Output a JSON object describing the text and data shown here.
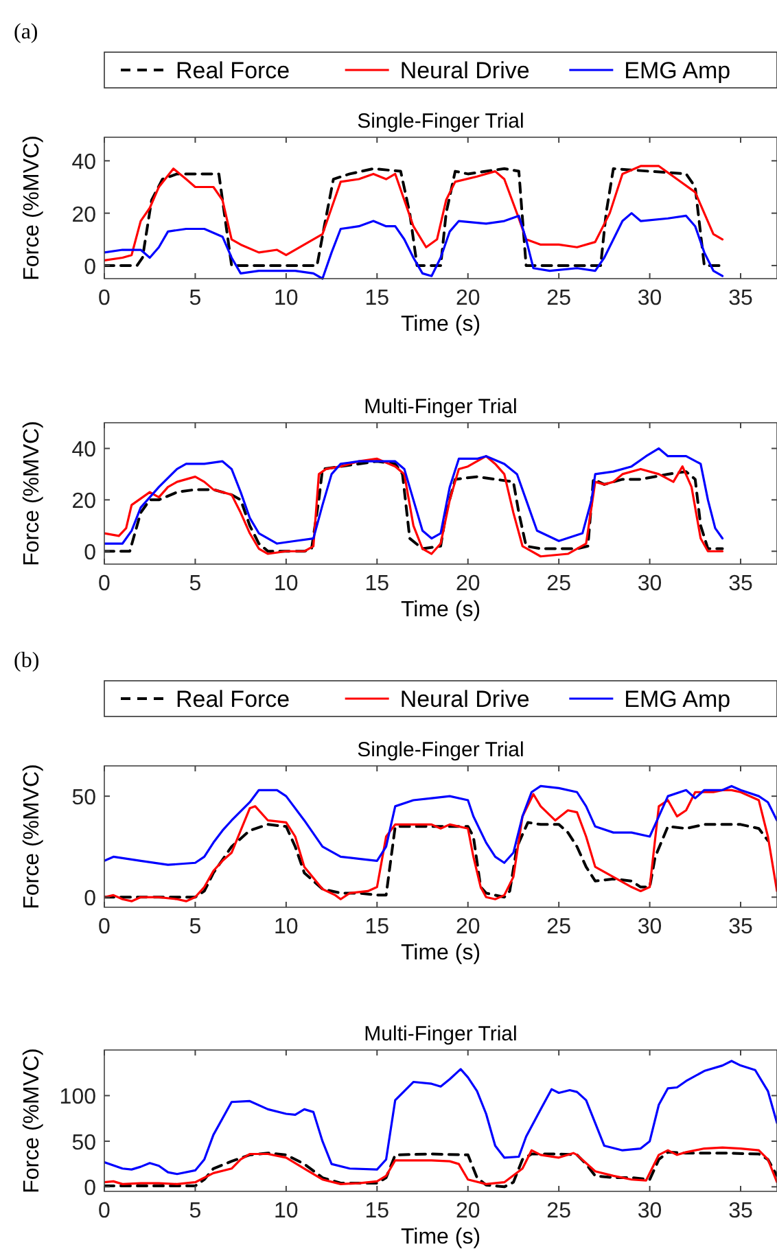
{
  "chart_data": [
    {
      "type": "line",
      "title": "Single-Finger Trial",
      "xlabel": "Time (s)",
      "ylabel": "Force (%MVC)",
      "xlim": [
        0,
        37
      ],
      "xticks": [
        0,
        5,
        10,
        15,
        20,
        25,
        30,
        35
      ],
      "ylim": [
        -5,
        49
      ],
      "yticks": [
        0,
        20,
        40
      ],
      "legend": "top",
      "annotations": [
        "(a)"
      ],
      "series": [
        {
          "name": "Real Force",
          "color": "#000000",
          "line_style": "dashed",
          "x": [
            0,
            1.8,
            2.1,
            2.6,
            3.2,
            4,
            5,
            6.3,
            6.6,
            7,
            11.7,
            12.1,
            12.6,
            13.5,
            14.8,
            16.3,
            16.8,
            17.2,
            18.5,
            18.8,
            19.3,
            20,
            22,
            22.8,
            23.2,
            27.3,
            27.6,
            28,
            30,
            32,
            32.5,
            33,
            34
          ],
          "values": [
            0,
            0,
            3,
            25,
            33,
            35,
            35,
            35,
            20,
            0,
            0,
            15,
            33,
            35,
            37,
            36,
            20,
            0,
            0,
            20,
            36,
            35,
            37,
            36,
            0,
            0,
            20,
            37,
            36,
            35,
            30,
            0,
            0
          ]
        },
        {
          "name": "Neural Drive",
          "color": "#ff0000",
          "line_style": "solid",
          "x": [
            0,
            1,
            1.5,
            2,
            2.5,
            3,
            3.8,
            4.5,
            5,
            6,
            6.5,
            7,
            7.5,
            8.5,
            9.5,
            10,
            11,
            12,
            12.5,
            13,
            14,
            14.8,
            15.5,
            16,
            16.5,
            17,
            17.7,
            18.3,
            18.8,
            19.3,
            20.5,
            21.5,
            22,
            22.8,
            23.2,
            24,
            25,
            26,
            27,
            27.8,
            28.5,
            29.5,
            30.5,
            31.5,
            32.5,
            33,
            33.5,
            34
          ],
          "values": [
            2,
            3,
            4,
            17,
            22,
            30,
            37,
            33,
            30,
            30,
            25,
            10,
            8,
            5,
            6,
            4,
            8,
            12,
            22,
            32,
            33,
            35,
            33,
            35,
            25,
            15,
            7,
            10,
            25,
            32,
            34,
            36,
            33,
            18,
            10,
            8,
            8,
            7,
            9,
            20,
            35,
            38,
            38,
            33,
            28,
            20,
            12,
            10
          ]
        },
        {
          "name": "EMG Amp",
          "color": "#0000ff",
          "line_style": "solid",
          "x": [
            0,
            1,
            2,
            2.5,
            3,
            3.5,
            4.5,
            5.5,
            6.5,
            7,
            7.5,
            8.5,
            9.5,
            10.5,
            11.5,
            12,
            12.5,
            13,
            14,
            14.8,
            15.5,
            16,
            16.5,
            17,
            17.5,
            18,
            18.5,
            19,
            19.5,
            21,
            22,
            22.8,
            23.2,
            23.6,
            24.5,
            26,
            27,
            27.5,
            28.5,
            29,
            29.5,
            31,
            32,
            32.5,
            33,
            33.5,
            34
          ],
          "values": [
            5,
            6,
            6,
            3,
            7,
            13,
            14,
            14,
            11,
            3,
            -3,
            -2,
            -2,
            -2,
            -3,
            -5,
            5,
            14,
            15,
            17,
            15,
            15,
            10,
            3,
            -3,
            -4,
            3,
            13,
            17,
            16,
            17,
            19,
            10,
            -1,
            -2,
            -1,
            -2,
            3,
            17,
            20,
            17,
            18,
            19,
            15,
            5,
            -2,
            -4
          ]
        }
      ]
    },
    {
      "type": "line",
      "title": "Multi-Finger Trial",
      "xlabel": "Time (s)",
      "ylabel": "Force (%MVC)",
      "xlim": [
        0,
        37
      ],
      "xticks": [
        0,
        5,
        10,
        15,
        20,
        25,
        30,
        35
      ],
      "ylim": [
        -5,
        50
      ],
      "yticks": [
        0,
        20,
        40
      ],
      "series": [
        {
          "color": "#000000",
          "line_style": "dashed",
          "x": [
            0,
            1.4,
            2,
            2.5,
            3,
            4,
            5,
            6,
            7,
            7.5,
            8,
            8.5,
            9,
            11,
            11.4,
            11.8,
            12,
            13,
            14,
            15,
            16,
            16.4,
            16.8,
            17.5,
            18.5,
            18.8,
            19.3,
            20.5,
            21.5,
            22.5,
            22.8,
            23.2,
            24,
            26,
            26.6,
            26.9,
            27.5,
            28.5,
            29.5,
            31,
            32,
            32.5,
            32.8,
            33.2,
            34
          ],
          "values": [
            0,
            0,
            15,
            20,
            20,
            23,
            24,
            24,
            22,
            20,
            10,
            3,
            0,
            0,
            1,
            20,
            32,
            33,
            34,
            35,
            34,
            30,
            5,
            1,
            2,
            15,
            28,
            29,
            28,
            27,
            15,
            2,
            1,
            1,
            2,
            28,
            26,
            28,
            28,
            30,
            31,
            28,
            10,
            1,
            1
          ]
        },
        {
          "color": "#ff0000",
          "line_style": "solid",
          "x": [
            0,
            0.8,
            1.2,
            1.5,
            2.5,
            3,
            3.5,
            4,
            5,
            5.5,
            6,
            7,
            7.5,
            8,
            8.5,
            9,
            10,
            11,
            11.5,
            11.8,
            12.2,
            13,
            14,
            15,
            16,
            16.5,
            17,
            17.5,
            18,
            18.5,
            19,
            19.5,
            20,
            21,
            21.5,
            22,
            22.5,
            23,
            24,
            25.5,
            26.5,
            27,
            27.5,
            28,
            28.5,
            29.5,
            30.5,
            31.3,
            31.8,
            32.3,
            32.8,
            33.2,
            34
          ],
          "values": [
            7,
            6,
            9,
            18,
            23,
            21,
            25,
            27,
            29,
            27,
            24,
            22,
            15,
            7,
            1,
            -1,
            0,
            0,
            2,
            30,
            32,
            33,
            35,
            36,
            33,
            30,
            10,
            1,
            -1,
            3,
            20,
            32,
            33,
            37,
            34,
            30,
            15,
            2,
            -2,
            -1,
            3,
            27,
            26,
            27,
            30,
            32,
            30,
            27,
            33,
            25,
            5,
            0,
            0
          ]
        },
        {
          "color": "#0000ff",
          "line_style": "solid",
          "x": [
            0,
            1,
            1.5,
            2,
            3,
            4,
            4.5,
            5.5,
            6.5,
            7,
            7.5,
            8,
            8.5,
            9.5,
            10.5,
            11.5,
            12,
            12.5,
            13,
            14,
            15,
            16,
            16.5,
            17,
            17.5,
            18,
            18.5,
            19,
            19.5,
            20.5,
            21,
            22,
            22.7,
            23.2,
            23.8,
            25,
            26.3,
            26.8,
            27,
            28,
            29,
            29.8,
            30.5,
            31,
            32,
            32.8,
            33.2,
            33.6,
            34
          ],
          "values": [
            3,
            3,
            8,
            17,
            25,
            32,
            34,
            34,
            35,
            32,
            23,
            13,
            7,
            3,
            4,
            5,
            18,
            30,
            34,
            35,
            35,
            35,
            32,
            20,
            8,
            5,
            7,
            25,
            36,
            36,
            37,
            34,
            30,
            20,
            8,
            4,
            7,
            20,
            30,
            31,
            33,
            37,
            40,
            37,
            37,
            34,
            20,
            9,
            5
          ]
        }
      ]
    },
    {
      "type": "line",
      "title": "Single-Finger Trial",
      "xlabel": "Time (s)",
      "ylabel": "Force (%MVC)",
      "xlim": [
        0,
        37
      ],
      "xticks": [
        0,
        5,
        10,
        15,
        20,
        25,
        30,
        35
      ],
      "ylim": [
        -5,
        65
      ],
      "yticks": [
        0,
        50
      ],
      "legend": "top",
      "annotations": [
        "(b)"
      ],
      "series": [
        {
          "name": "Real Force",
          "color": "#000000",
          "line_style": "dashed",
          "x": [
            0,
            5,
            5.5,
            6,
            7,
            8,
            9,
            10,
            10.5,
            11,
            12,
            13,
            14,
            15,
            15.5,
            16,
            17,
            18,
            20,
            20.3,
            20.7,
            21,
            22,
            22.3,
            22.7,
            23.3,
            24,
            25,
            25.5,
            26,
            26.5,
            27,
            28,
            29,
            29.5,
            30,
            30.3,
            31,
            32,
            33,
            35,
            36,
            36.5
          ],
          "values": [
            0,
            0,
            3,
            12,
            25,
            33,
            36,
            35,
            25,
            12,
            4,
            2,
            2,
            1,
            1,
            35,
            35,
            35,
            35,
            30,
            5,
            2,
            0,
            3,
            25,
            37,
            36,
            36,
            32,
            25,
            15,
            8,
            9,
            8,
            5,
            5,
            20,
            35,
            34,
            36,
            36,
            34,
            28
          ]
        },
        {
          "name": "Neural Drive",
          "color": "#ff0000",
          "line_style": "solid",
          "x": [
            0,
            0.5,
            1,
            1.5,
            2,
            3,
            4,
            4.5,
            5,
            5.5,
            6,
            6.5,
            7,
            7.5,
            8,
            8.3,
            9,
            10,
            10.5,
            11,
            12,
            12.7,
            13,
            13.5,
            14.5,
            15,
            15.5,
            16,
            17,
            18,
            18.5,
            19,
            20,
            20.3,
            20.7,
            21,
            21.5,
            22,
            22.5,
            23,
            23.6,
            24,
            24.8,
            25.5,
            26,
            26.5,
            27,
            28,
            29,
            29.5,
            30,
            30.5,
            31,
            31.5,
            32,
            32.5,
            33.5,
            34,
            34.5,
            35,
            36,
            36.5,
            37
          ],
          "values": [
            0,
            1,
            -1,
            -2,
            0,
            0,
            -1,
            -2,
            0,
            5,
            13,
            18,
            22,
            33,
            44,
            45,
            38,
            37,
            30,
            15,
            4,
            1,
            -1,
            2,
            3,
            5,
            30,
            36,
            36,
            36,
            34,
            36,
            34,
            20,
            5,
            0,
            -1,
            1,
            10,
            40,
            51,
            45,
            38,
            43,
            42,
            30,
            15,
            10,
            5,
            3,
            5,
            45,
            48,
            40,
            43,
            52,
            52,
            53,
            53,
            52,
            48,
            30,
            3
          ]
        },
        {
          "name": "EMG Amp",
          "color": "#0000ff",
          "line_style": "solid",
          "x": [
            0,
            0.5,
            2,
            3.5,
            5,
            5.5,
            6,
            6.5,
            7,
            8,
            8.5,
            9.5,
            10,
            11,
            12,
            13,
            14,
            15,
            15.5,
            16,
            17,
            18,
            19,
            20,
            20.3,
            21,
            21.5,
            22,
            22.5,
            23,
            23.5,
            24,
            25,
            26,
            26.5,
            27,
            28,
            29,
            30,
            30.5,
            31,
            32,
            32.5,
            33,
            34,
            34.5,
            35,
            36,
            36.5,
            37
          ],
          "values": [
            18,
            20,
            18,
            16,
            17,
            20,
            27,
            33,
            38,
            47,
            53,
            53,
            50,
            38,
            25,
            20,
            19,
            18,
            25,
            45,
            48,
            49,
            50,
            48,
            40,
            27,
            20,
            17,
            22,
            40,
            52,
            55,
            54,
            52,
            45,
            35,
            32,
            32,
            30,
            40,
            50,
            53,
            49,
            53,
            53,
            55,
            53,
            50,
            47,
            38
          ]
        }
      ]
    },
    {
      "type": "line",
      "title": "Multi-Finger Trial",
      "xlabel": "Time (s)",
      "ylabel": "Force (%MVC)",
      "xlim": [
        0,
        37
      ],
      "xticks": [
        0,
        5,
        10,
        15,
        20,
        25,
        30,
        35
      ],
      "ylim": [
        -5,
        150
      ],
      "yticks": [
        0,
        50,
        100
      ],
      "series": [
        {
          "color": "#000000",
          "line_style": "dashed",
          "x": [
            0,
            5,
            5.5,
            6,
            7,
            8,
            9,
            10,
            11,
            12,
            13,
            15,
            15.5,
            16,
            18,
            20,
            20.5,
            21,
            22,
            22.5,
            23,
            23.5,
            25,
            26,
            26.5,
            27,
            28,
            29,
            30,
            30.5,
            31,
            32,
            34,
            36,
            36.5,
            37
          ],
          "values": [
            1,
            1,
            8,
            20,
            28,
            35,
            37,
            35,
            25,
            10,
            4,
            4,
            10,
            35,
            36,
            35,
            10,
            2,
            0,
            5,
            30,
            36,
            36,
            35,
            25,
            12,
            10,
            10,
            8,
            30,
            38,
            37,
            37,
            36,
            30,
            12
          ]
        },
        {
          "color": "#ff0000",
          "line_style": "solid",
          "x": [
            0,
            0.5,
            1,
            2,
            3,
            4,
            5,
            6,
            7,
            7.5,
            8,
            9,
            10,
            11,
            12,
            13,
            14,
            15,
            15.5,
            16,
            18,
            19,
            19.5,
            20,
            21,
            22,
            23,
            23.5,
            24,
            25,
            25.8,
            26,
            27,
            28,
            29,
            29.8,
            30.5,
            31,
            31.5,
            32,
            33,
            34,
            35,
            36,
            36.5,
            37
          ],
          "values": [
            5,
            6,
            3,
            4,
            4,
            3,
            5,
            15,
            20,
            30,
            36,
            36,
            32,
            20,
            8,
            3,
            4,
            6,
            12,
            29,
            29,
            28,
            25,
            8,
            3,
            5,
            20,
            40,
            35,
            32,
            37,
            35,
            17,
            12,
            8,
            7,
            35,
            40,
            35,
            38,
            42,
            43,
            42,
            40,
            30,
            5
          ]
        },
        {
          "color": "#0000ff",
          "line_style": "solid",
          "x": [
            0,
            1,
            1.5,
            2,
            2.5,
            3,
            3.5,
            4,
            5,
            5.5,
            6,
            6.5,
            7,
            8,
            9,
            10,
            10.5,
            11,
            11.5,
            12,
            12.5,
            13.5,
            15,
            15.5,
            16,
            16.5,
            17,
            18,
            18.5,
            19,
            19.6,
            20,
            20.5,
            21,
            21.5,
            22,
            22.8,
            23.2,
            24,
            24.6,
            25,
            25.6,
            26,
            26.5,
            27,
            27.5,
            28.5,
            29.5,
            30,
            30.5,
            31,
            31.5,
            32,
            33,
            34,
            34.5,
            35,
            35.8,
            36.5,
            37
          ],
          "values": [
            27,
            20,
            19,
            22,
            26,
            23,
            16,
            14,
            18,
            30,
            57,
            75,
            93,
            94,
            85,
            80,
            79,
            85,
            82,
            50,
            25,
            20,
            19,
            30,
            95,
            105,
            115,
            113,
            110,
            118,
            129,
            120,
            105,
            80,
            45,
            32,
            33,
            55,
            85,
            107,
            103,
            106,
            104,
            95,
            70,
            45,
            40,
            42,
            50,
            90,
            108,
            109,
            116,
            127,
            133,
            138,
            133,
            128,
            105,
            70
          ]
        }
      ]
    }
  ]
}
